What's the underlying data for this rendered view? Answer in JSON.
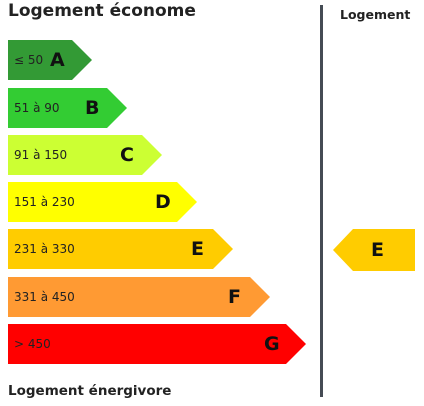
{
  "header": {
    "title": "Logement économe",
    "footer": "Logement énergivore",
    "column_title": "Logement"
  },
  "classes": [
    {
      "range": "≤ 50",
      "letter": "A",
      "color": "#339a35"
    },
    {
      "range": "51 à 90",
      "letter": "B",
      "color": "#33cc33"
    },
    {
      "range": "91 à 150",
      "letter": "C",
      "color": "#ccff33"
    },
    {
      "range": "151 à 230",
      "letter": "D",
      "color": "#ffff00"
    },
    {
      "range": "231 à 330",
      "letter": "E",
      "color": "#ffcc00"
    },
    {
      "range": "331 à 450",
      "letter": "F",
      "color": "#ff9a33"
    },
    {
      "range": "> 450",
      "letter": "G",
      "color": "#ff0000"
    }
  ],
  "current": {
    "letter": "E",
    "color": "#ffcc00"
  }
}
